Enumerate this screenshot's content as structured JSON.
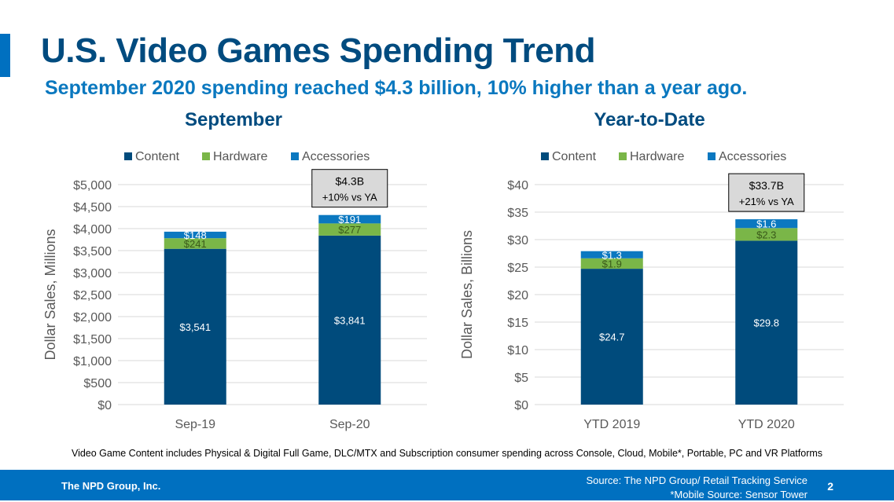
{
  "header": {
    "title": "U.S. Video Games Spending Trend",
    "subtitle": "September 2020 spending reached $4.3 billion, 10% higher than a year ago."
  },
  "colors": {
    "content": "#004b7c",
    "hardware": "#7ab648",
    "accessories": "#0b78c0",
    "title": "#004b7f",
    "footer": "#0070c0"
  },
  "chart_data": [
    {
      "type": "bar",
      "stacked": true,
      "title": "September",
      "xlabel": "",
      "ylabel": "Dollar Sales, Millions",
      "ylim": [
        0,
        5000
      ],
      "yticks": [
        0,
        500,
        1000,
        1500,
        2000,
        2500,
        3000,
        3500,
        4000,
        4500,
        5000
      ],
      "ytick_labels": [
        "$0",
        "$500",
        "$1,000",
        "$1,500",
        "$2,000",
        "$2,500",
        "$3,000",
        "$3,500",
        "$4,000",
        "$4,500",
        "$5,000"
      ],
      "categories": [
        "Sep-19",
        "Sep-20"
      ],
      "legend": [
        "Content",
        "Hardware",
        "Accessories"
      ],
      "legend_position": "top",
      "grid": true,
      "series": [
        {
          "name": "Content",
          "values": [
            3541,
            3841
          ],
          "labels": [
            "$3,541",
            "$3,841"
          ]
        },
        {
          "name": "Hardware",
          "values": [
            241,
            277
          ],
          "labels": [
            "$241",
            "$277"
          ]
        },
        {
          "name": "Accessories",
          "values": [
            148,
            191
          ],
          "labels": [
            "$148",
            "$191"
          ]
        }
      ],
      "annotation": {
        "category": "Sep-20",
        "lines": [
          "$4.3B",
          "+10% vs YA"
        ]
      }
    },
    {
      "type": "bar",
      "stacked": true,
      "title": "Year-to-Date",
      "xlabel": "",
      "ylabel": "Dollar Sales, Billions",
      "ylim": [
        0,
        40
      ],
      "yticks": [
        0,
        5,
        10,
        15,
        20,
        25,
        30,
        35,
        40
      ],
      "ytick_labels": [
        "$0",
        "$5",
        "$10",
        "$15",
        "$20",
        "$25",
        "$30",
        "$35",
        "$40"
      ],
      "categories": [
        "YTD 2019",
        "YTD 2020"
      ],
      "legend": [
        "Content",
        "Hardware",
        "Accessories"
      ],
      "legend_position": "top",
      "grid": true,
      "series": [
        {
          "name": "Content",
          "values": [
            24.7,
            29.8
          ],
          "labels": [
            "$24.7",
            "$29.8"
          ]
        },
        {
          "name": "Hardware",
          "values": [
            1.9,
            2.3
          ],
          "labels": [
            "$1.9",
            "$2.3"
          ]
        },
        {
          "name": "Accessories",
          "values": [
            1.3,
            1.6
          ],
          "labels": [
            "$1.3",
            "$1.6"
          ]
        }
      ],
      "annotation": {
        "category": "YTD 2020",
        "lines": [
          "$33.7B",
          "+21% vs YA"
        ]
      }
    }
  ],
  "footnote": "Video Game Content includes Physical & Digital Full Game, DLC/MTX and Subscription consumer spending across Console, Cloud, Mobile*, Portable, PC and VR Platforms",
  "footer": {
    "company": "The NPD Group, Inc.",
    "source_line1": "Source: The NPD Group/ Retail Tracking Service",
    "source_line2": "*Mobile Source: Sensor Tower",
    "page_number": "2"
  }
}
